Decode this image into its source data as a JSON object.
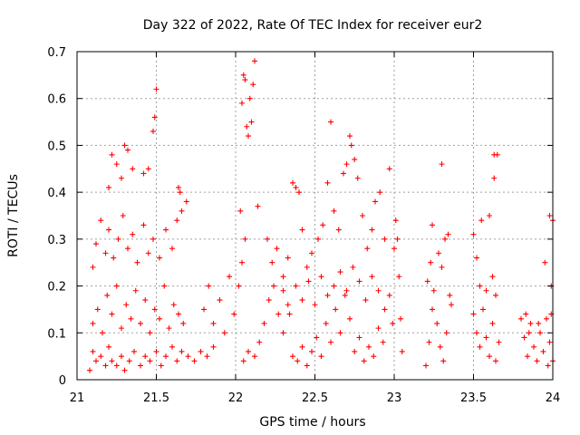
{
  "chart_data": {
    "type": "scatter",
    "title": "Day 322 of 2022, Rate Of TEC Index for receiver eur2",
    "xlabel": "GPS time / hours",
    "ylabel": "ROTI / TECUs",
    "xlim": [
      21,
      24
    ],
    "ylim": [
      0,
      0.7
    ],
    "x_ticks": [
      21,
      21.5,
      22,
      22.5,
      23,
      23.5,
      24
    ],
    "x_tick_labels": [
      "21",
      "21.5",
      "22",
      "22.5",
      "23",
      "23.5",
      "24"
    ],
    "y_ticks": [
      0,
      0.1,
      0.2,
      0.3,
      0.4,
      0.5,
      0.6,
      0.7
    ],
    "y_tick_labels": [
      "0",
      "0.1",
      "0.2",
      "0.3",
      "0.4",
      "0.5",
      "0.6",
      "0.7"
    ],
    "grid": true,
    "marker": "+",
    "color": "#ff0000",
    "series": [
      {
        "points": [
          [
            21.08,
            0.02
          ],
          [
            21.1,
            0.06
          ],
          [
            21.12,
            0.04
          ],
          [
            21.15,
            0.05
          ],
          [
            21.18,
            0.03
          ],
          [
            21.2,
            0.07
          ],
          [
            21.22,
            0.04
          ],
          [
            21.25,
            0.03
          ],
          [
            21.28,
            0.05
          ],
          [
            21.3,
            0.02
          ],
          [
            21.33,
            0.04
          ],
          [
            21.36,
            0.06
          ],
          [
            21.4,
            0.03
          ],
          [
            21.43,
            0.05
          ],
          [
            21.46,
            0.04
          ],
          [
            21.5,
            0.06
          ],
          [
            21.53,
            0.03
          ],
          [
            21.56,
            0.05
          ],
          [
            21.6,
            0.07
          ],
          [
            21.63,
            0.04
          ],
          [
            21.66,
            0.06
          ],
          [
            21.7,
            0.05
          ],
          [
            21.74,
            0.04
          ],
          [
            21.78,
            0.06
          ],
          [
            21.82,
            0.05
          ],
          [
            21.86,
            0.07
          ],
          [
            21.1,
            0.12
          ],
          [
            21.13,
            0.15
          ],
          [
            21.16,
            0.1
          ],
          [
            21.19,
            0.18
          ],
          [
            21.22,
            0.14
          ],
          [
            21.25,
            0.2
          ],
          [
            21.28,
            0.11
          ],
          [
            21.31,
            0.16
          ],
          [
            21.34,
            0.13
          ],
          [
            21.37,
            0.19
          ],
          [
            21.4,
            0.12
          ],
          [
            21.43,
            0.17
          ],
          [
            21.46,
            0.1
          ],
          [
            21.49,
            0.15
          ],
          [
            21.52,
            0.13
          ],
          [
            21.55,
            0.2
          ],
          [
            21.58,
            0.11
          ],
          [
            21.61,
            0.16
          ],
          [
            21.64,
            0.14
          ],
          [
            21.67,
            0.12
          ],
          [
            21.1,
            0.24
          ],
          [
            21.12,
            0.29
          ],
          [
            21.15,
            0.34
          ],
          [
            21.18,
            0.27
          ],
          [
            21.2,
            0.32
          ],
          [
            21.23,
            0.26
          ],
          [
            21.26,
            0.3
          ],
          [
            21.29,
            0.35
          ],
          [
            21.32,
            0.28
          ],
          [
            21.35,
            0.31
          ],
          [
            21.38,
            0.25
          ],
          [
            21.42,
            0.33
          ],
          [
            21.45,
            0.27
          ],
          [
            21.48,
            0.3
          ],
          [
            21.52,
            0.26
          ],
          [
            21.56,
            0.32
          ],
          [
            21.6,
            0.28
          ],
          [
            21.63,
            0.34
          ],
          [
            21.66,
            0.36
          ],
          [
            21.69,
            0.38
          ],
          [
            21.2,
            0.41
          ],
          [
            21.22,
            0.48
          ],
          [
            21.25,
            0.46
          ],
          [
            21.28,
            0.43
          ],
          [
            21.3,
            0.5
          ],
          [
            21.32,
            0.49
          ],
          [
            21.35,
            0.45
          ],
          [
            21.42,
            0.44
          ],
          [
            21.45,
            0.45
          ],
          [
            21.48,
            0.53
          ],
          [
            21.49,
            0.56
          ],
          [
            21.5,
            0.62
          ],
          [
            21.64,
            0.41
          ],
          [
            21.65,
            0.4
          ],
          [
            21.8,
            0.15
          ],
          [
            21.83,
            0.2
          ],
          [
            21.86,
            0.12
          ],
          [
            21.9,
            0.17
          ],
          [
            21.93,
            0.1
          ],
          [
            21.96,
            0.22
          ],
          [
            21.99,
            0.14
          ],
          [
            22.02,
            0.2
          ],
          [
            22.04,
            0.25
          ],
          [
            22.06,
            0.3
          ],
          [
            22.03,
            0.36
          ],
          [
            22.04,
            0.59
          ],
          [
            22.05,
            0.65
          ],
          [
            22.06,
            0.64
          ],
          [
            22.07,
            0.54
          ],
          [
            22.08,
            0.52
          ],
          [
            22.09,
            0.6
          ],
          [
            22.1,
            0.55
          ],
          [
            22.11,
            0.63
          ],
          [
            22.12,
            0.68
          ],
          [
            22.14,
            0.37
          ],
          [
            22.05,
            0.04
          ],
          [
            22.08,
            0.06
          ],
          [
            22.12,
            0.05
          ],
          [
            22.15,
            0.08
          ],
          [
            22.18,
            0.12
          ],
          [
            22.21,
            0.17
          ],
          [
            22.24,
            0.2
          ],
          [
            22.27,
            0.14
          ],
          [
            22.3,
            0.1
          ],
          [
            22.33,
            0.16
          ],
          [
            22.36,
            0.05
          ],
          [
            22.39,
            0.04
          ],
          [
            22.42,
            0.07
          ],
          [
            22.45,
            0.03
          ],
          [
            22.48,
            0.06
          ],
          [
            22.51,
            0.09
          ],
          [
            22.54,
            0.05
          ],
          [
            22.57,
            0.12
          ],
          [
            22.6,
            0.08
          ],
          [
            22.63,
            0.15
          ],
          [
            22.66,
            0.1
          ],
          [
            22.69,
            0.18
          ],
          [
            22.72,
            0.13
          ],
          [
            22.75,
            0.06
          ],
          [
            22.78,
            0.09
          ],
          [
            22.81,
            0.04
          ],
          [
            22.84,
            0.07
          ],
          [
            22.87,
            0.05
          ],
          [
            22.9,
            0.11
          ],
          [
            22.93,
            0.08
          ],
          [
            22.2,
            0.3
          ],
          [
            22.23,
            0.25
          ],
          [
            22.26,
            0.28
          ],
          [
            22.3,
            0.22
          ],
          [
            22.33,
            0.26
          ],
          [
            22.36,
            0.42
          ],
          [
            22.38,
            0.41
          ],
          [
            22.4,
            0.4
          ],
          [
            22.42,
            0.32
          ],
          [
            22.45,
            0.24
          ],
          [
            22.48,
            0.27
          ],
          [
            22.52,
            0.3
          ],
          [
            22.55,
            0.33
          ],
          [
            22.58,
            0.42
          ],
          [
            22.6,
            0.55
          ],
          [
            22.62,
            0.36
          ],
          [
            22.65,
            0.32
          ],
          [
            22.68,
            0.44
          ],
          [
            22.7,
            0.46
          ],
          [
            22.72,
            0.52
          ],
          [
            22.73,
            0.5
          ],
          [
            22.75,
            0.47
          ],
          [
            22.77,
            0.43
          ],
          [
            22.8,
            0.35
          ],
          [
            22.83,
            0.28
          ],
          [
            22.86,
            0.32
          ],
          [
            22.88,
            0.38
          ],
          [
            22.91,
            0.4
          ],
          [
            22.94,
            0.3
          ],
          [
            22.97,
            0.45
          ],
          [
            22.3,
            0.19
          ],
          [
            22.34,
            0.14
          ],
          [
            22.38,
            0.2
          ],
          [
            22.42,
            0.17
          ],
          [
            22.46,
            0.21
          ],
          [
            22.5,
            0.16
          ],
          [
            22.54,
            0.22
          ],
          [
            22.58,
            0.18
          ],
          [
            22.62,
            0.2
          ],
          [
            22.66,
            0.23
          ],
          [
            22.7,
            0.19
          ],
          [
            22.74,
            0.24
          ],
          [
            22.78,
            0.21
          ],
          [
            22.82,
            0.17
          ],
          [
            22.86,
            0.22
          ],
          [
            22.9,
            0.19
          ],
          [
            22.94,
            0.15
          ],
          [
            22.97,
            0.18
          ],
          [
            22.99,
            0.12
          ],
          [
            23.0,
            0.28
          ],
          [
            23.01,
            0.34
          ],
          [
            23.02,
            0.3
          ],
          [
            23.03,
            0.22
          ],
          [
            23.04,
            0.13
          ],
          [
            23.05,
            0.06
          ],
          [
            23.2,
            0.03
          ],
          [
            23.22,
            0.08
          ],
          [
            23.24,
            0.15
          ],
          [
            23.21,
            0.21
          ],
          [
            23.23,
            0.25
          ],
          [
            23.25,
            0.19
          ],
          [
            23.27,
            0.12
          ],
          [
            23.29,
            0.07
          ],
          [
            23.31,
            0.04
          ],
          [
            23.33,
            0.1
          ],
          [
            23.35,
            0.18
          ],
          [
            23.3,
            0.24
          ],
          [
            23.32,
            0.3
          ],
          [
            23.24,
            0.33
          ],
          [
            23.3,
            0.46
          ],
          [
            23.34,
            0.31
          ],
          [
            23.36,
            0.16
          ],
          [
            23.28,
            0.27
          ],
          [
            23.5,
            0.31
          ],
          [
            23.52,
            0.26
          ],
          [
            23.54,
            0.2
          ],
          [
            23.56,
            0.15
          ],
          [
            23.58,
            0.09
          ],
          [
            23.6,
            0.05
          ],
          [
            23.62,
            0.12
          ],
          [
            23.64,
            0.18
          ],
          [
            23.66,
            0.08
          ],
          [
            23.63,
            0.48
          ],
          [
            23.65,
            0.48
          ],
          [
            23.63,
            0.43
          ],
          [
            23.55,
            0.34
          ],
          [
            23.6,
            0.35
          ],
          [
            23.5,
            0.14
          ],
          [
            23.52,
            0.1
          ],
          [
            23.54,
            0.07
          ],
          [
            23.58,
            0.19
          ],
          [
            23.62,
            0.22
          ],
          [
            23.64,
            0.04
          ],
          [
            23.8,
            0.13
          ],
          [
            23.82,
            0.09
          ],
          [
            23.84,
            0.05
          ],
          [
            23.86,
            0.12
          ],
          [
            23.88,
            0.07
          ],
          [
            23.9,
            0.04
          ],
          [
            23.92,
            0.1
          ],
          [
            23.94,
            0.06
          ],
          [
            23.96,
            0.13
          ],
          [
            23.98,
            0.08
          ],
          [
            24.0,
            0.04
          ],
          [
            23.99,
            0.14
          ],
          [
            23.95,
            0.25
          ],
          [
            23.98,
            0.35
          ],
          [
            24.0,
            0.34
          ],
          [
            23.99,
            0.2
          ],
          [
            23.85,
            0.1
          ],
          [
            23.91,
            0.12
          ],
          [
            23.97,
            0.03
          ],
          [
            23.83,
            0.14
          ]
        ]
      }
    ]
  }
}
